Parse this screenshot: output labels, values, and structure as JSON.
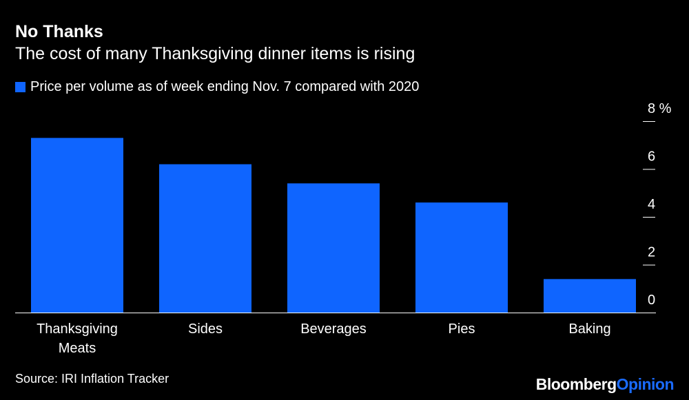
{
  "chart_data": {
    "type": "bar",
    "title": "No Thanks",
    "subtitle": "The cost of many Thanksgiving dinner items is rising",
    "legend": "Price per volume as of week ending Nov. 7 compared with 2020",
    "categories": [
      [
        "Thanksgiving",
        "Meats"
      ],
      [
        "Sides"
      ],
      [
        "Beverages"
      ],
      [
        "Pies"
      ],
      [
        "Baking"
      ]
    ],
    "series": [
      {
        "name": "Price per volume as of week ending Nov. 7 compared with 2020",
        "values": [
          7.3,
          6.2,
          5.4,
          4.6,
          1.4
        ]
      }
    ],
    "yticks": [
      "8 %",
      "6",
      "4",
      "2",
      "0"
    ],
    "ytick_values": [
      8,
      6,
      4,
      2,
      0
    ],
    "ylim": [
      0,
      8
    ],
    "xlabel": "",
    "ylabel": "",
    "bar_color": "#0f65ff",
    "source": "Source: IRI Inflation Tracker"
  },
  "brand": {
    "part1": "Bloomberg",
    "part2": "Opinion"
  }
}
